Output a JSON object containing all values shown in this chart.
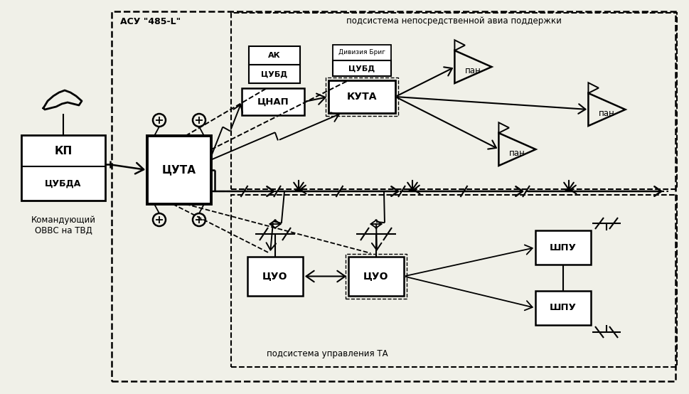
{
  "bg": "#f0f0e8",
  "lc": "#000000",
  "labels": {
    "asu": "АСУ \"485-L\"",
    "sub1": "подсистема непосредственной авиа поддержки",
    "sub2": "подсистема управления ТА",
    "kp": "КП",
    "tsubda": "ЦУБДА",
    "cmd": "Командующий\nОВВС на ТВД",
    "tsuta": "ЦУТА",
    "tsnap": "ЦНАП",
    "ak_cubд": "АК\nЦУБД",
    "kuta": "КУТА",
    "div": "Дивизия\nБриг",
    "cubд": "ЦУБД",
    "tsuo1": "ЦУО",
    "tsuo2": "ЦУО",
    "shu1": "ШПУ",
    "shu2": "ШПУ",
    "pan": "пан"
  }
}
